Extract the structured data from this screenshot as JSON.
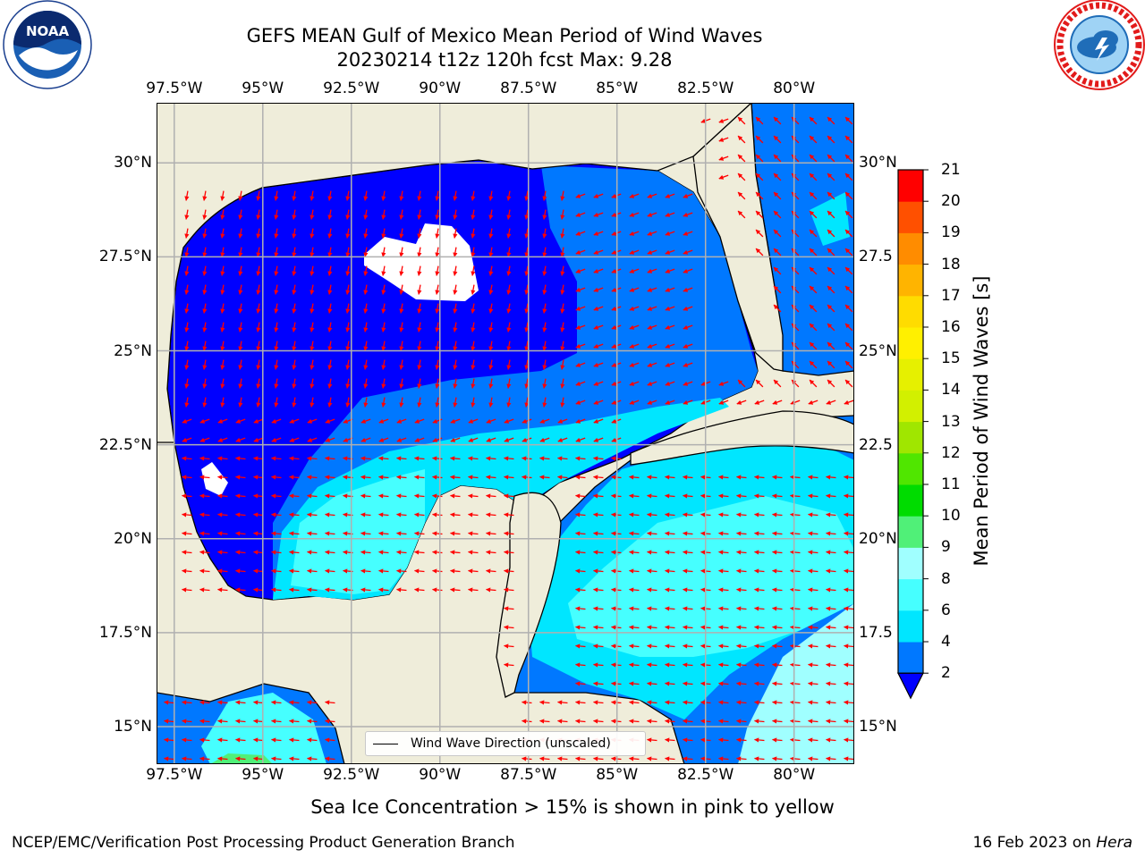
{
  "title_line1": "GEFS MEAN Gulf of Mexico Mean Period of Wind Waves",
  "title_line2": "20230214 t12z 120h fcst   Max: 9.28",
  "map": {
    "lon_ticks": [
      "97.5°W",
      "95°W",
      "92.5°W",
      "90°W",
      "87.5°W",
      "85°W",
      "82.5°W",
      "80°W"
    ],
    "lon_values": [
      -97.5,
      -95,
      -92.5,
      -90,
      -87.5,
      -85,
      -82.5,
      -80
    ],
    "lat_ticks_left": [
      "30°N",
      "27.5°N",
      "25°N",
      "22.5°N",
      "20°N",
      "17.5°N",
      "15°N"
    ],
    "lat_ticks_right": [
      "30°N",
      "27.5",
      "25°N",
      "22.5",
      "20°N",
      "17.5",
      "15°N"
    ],
    "lat_values": [
      30,
      27.5,
      25,
      22.5,
      20,
      17.5,
      15
    ],
    "lon_range": [
      -98,
      -78.3
    ],
    "lat_range": [
      14,
      31.6
    ],
    "grid": true,
    "land_color": "#efedda",
    "ocean_color": "#ffffff",
    "arrow_color": "#ff0000"
  },
  "legend": {
    "label": "Wind Wave Direction (unscaled)",
    "placement": "bottom-center"
  },
  "colorbar": {
    "title": "Mean Period of Wind Waves [s]",
    "ticks": [
      "2",
      "4",
      "6",
      "8",
      "9",
      "10",
      "11",
      "12",
      "13",
      "14",
      "15",
      "16",
      "17",
      "18",
      "19",
      "20",
      "21"
    ],
    "colors": [
      "#0078ff",
      "#00e6ff",
      "#46ffff",
      "#a0ffff",
      "#50f078",
      "#00dc00",
      "#50e600",
      "#a0e600",
      "#d2f000",
      "#e6f000",
      "#fff000",
      "#ffdc00",
      "#ffb400",
      "#ff8c00",
      "#ff5000",
      "#ff2800",
      "#ff0000"
    ],
    "under_color": "#0000ff"
  },
  "subnote": "Sea Ice Concentration > 15% is shown in pink to yellow",
  "footer": {
    "left": "NCEP/EMC/Verification Post Processing Product Generation Branch",
    "right_date": "16 Feb 2023 on ",
    "right_host": "Hera"
  },
  "logos": {
    "left": "noaa-logo",
    "right": "nws-logo"
  }
}
